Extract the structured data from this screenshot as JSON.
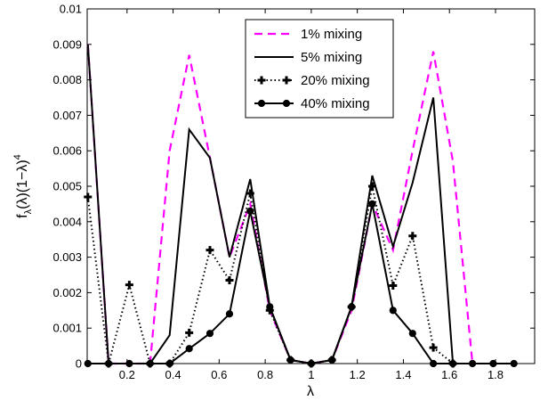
{
  "chart_data": {
    "type": "line",
    "xlabel": "λ",
    "ylabel": "f_λ(λ)(1−λ)^4",
    "xlim": [
      0.027,
      1.97
    ],
    "ylim": [
      0,
      0.01
    ],
    "x_ticks": [
      0.2,
      0.4,
      0.6,
      0.8,
      1,
      1.2,
      1.4,
      1.6,
      1.8
    ],
    "x_tick_labels": [
      "0.2",
      "0.4",
      "0.6",
      "0.8",
      "1",
      "1.2",
      "1.4",
      "1.6",
      "1.8"
    ],
    "y_ticks": [
      0,
      0.001,
      0.002,
      0.003,
      0.004,
      0.005,
      0.006,
      0.007,
      0.008,
      0.009,
      0.01
    ],
    "y_tick_labels": [
      "0",
      "0.001",
      "0.002",
      "0.003",
      "0.004",
      "0.005",
      "0.006",
      "0.007",
      "0.008",
      "0.009",
      "0.01"
    ],
    "legend_position": "top-right",
    "grid": false,
    "series": [
      {
        "name": "1% mixing",
        "color": "#ff00ff",
        "style": "dashed",
        "marker": "none",
        "x": [
          0.03,
          0.12,
          0.21,
          0.3,
          0.385,
          0.47,
          0.56,
          0.645,
          0.735,
          0.82,
          0.91,
          1.0,
          1.09,
          1.175,
          1.265,
          1.355,
          1.44,
          1.53,
          1.615,
          1.7
        ],
        "y": [
          0.009,
          0.0,
          0.0,
          0.0,
          0.006,
          0.0087,
          0.0058,
          0.003,
          0.0045,
          0.0015,
          0.0001,
          0.0,
          0.0001,
          0.0015,
          0.0045,
          0.0032,
          0.006,
          0.0088,
          0.0057,
          0.0
        ]
      },
      {
        "name": "5% mixing",
        "color": "#000000",
        "style": "solid",
        "marker": "none",
        "x": [
          0.03,
          0.12,
          0.21,
          0.3,
          0.385,
          0.47,
          0.56,
          0.645,
          0.735,
          0.82,
          0.91,
          1.0,
          1.09,
          1.175,
          1.265,
          1.355,
          1.44,
          1.53,
          1.615,
          1.7
        ],
        "y": [
          0.009,
          0.0,
          0.0,
          0.0,
          0.0008,
          0.0066,
          0.0058,
          0.003,
          0.0052,
          0.0016,
          0.0001,
          0.0,
          0.0001,
          0.0016,
          0.0053,
          0.0033,
          0.0051,
          0.0075,
          0.0,
          0.0
        ]
      },
      {
        "name": "20% mixing",
        "color": "#000000",
        "style": "dotted",
        "marker": "plus",
        "x": [
          0.03,
          0.12,
          0.21,
          0.3,
          0.385,
          0.47,
          0.56,
          0.645,
          0.735,
          0.82,
          0.91,
          1.0,
          1.09,
          1.175,
          1.265,
          1.355,
          1.44,
          1.53,
          1.615
        ],
        "y": [
          0.0047,
          0.0,
          0.00222,
          0.0,
          0.0,
          0.00087,
          0.0032,
          0.00235,
          0.0048,
          0.0015,
          0.0001,
          0.0,
          0.0001,
          0.0016,
          0.005,
          0.0022,
          0.0036,
          0.00045,
          0.0
        ]
      },
      {
        "name": "40% mixing",
        "color": "#000000",
        "style": "solid",
        "marker": "dot",
        "x": [
          0.03,
          0.12,
          0.21,
          0.3,
          0.385,
          0.47,
          0.56,
          0.645,
          0.735,
          0.82,
          0.91,
          1.0,
          1.09,
          1.175,
          1.265,
          1.355,
          1.44,
          1.53,
          1.615,
          1.7,
          1.79,
          1.88
        ],
        "y": [
          0.0,
          0.0,
          0.0,
          0.0,
          0.0,
          0.00042,
          0.00085,
          0.0014,
          0.0043,
          0.0016,
          0.0001,
          0.0,
          0.0001,
          0.0016,
          0.0045,
          0.0015,
          0.00085,
          0.0,
          0.0,
          0.0,
          0.0,
          0.0
        ]
      }
    ]
  }
}
